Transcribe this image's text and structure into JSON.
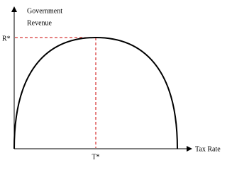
{
  "axes": {
    "y_label": [
      "Government",
      "Revenue"
    ],
    "x_label": "Tax Rate"
  },
  "markers": {
    "revenue_max": "R*",
    "tax_rate_optimal": "T*"
  }
}
